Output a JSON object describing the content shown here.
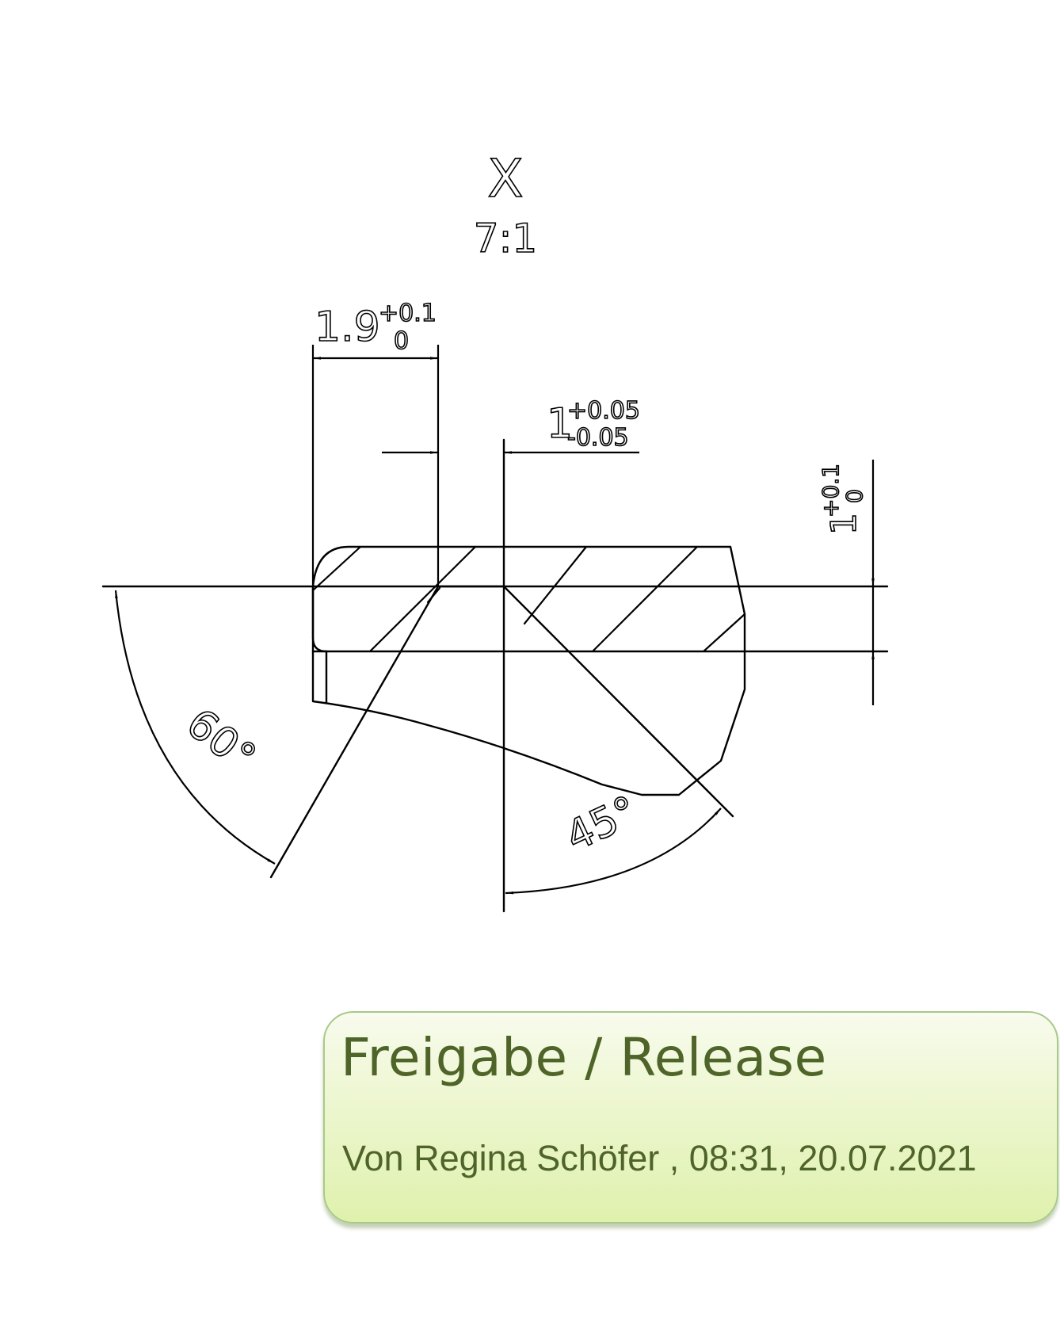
{
  "detail": {
    "label": "X",
    "scale": "7:1"
  },
  "dimensions": {
    "width_nominal": "1.9",
    "width_upper_tol": "+0.1",
    "width_lower_tol": "0",
    "offset_nominal": "1",
    "offset_upper_tol": "+0.05",
    "offset_lower_tol": "-0.05",
    "height_nominal": "1",
    "height_upper_tol": "+0.1",
    "height_lower_tol": "0",
    "angle_left": "60°",
    "angle_right": "45°"
  },
  "stamp": {
    "title": "Freigabe / Release",
    "line": "Von Regina Schöfer , 08:31, 20.07.2021"
  }
}
